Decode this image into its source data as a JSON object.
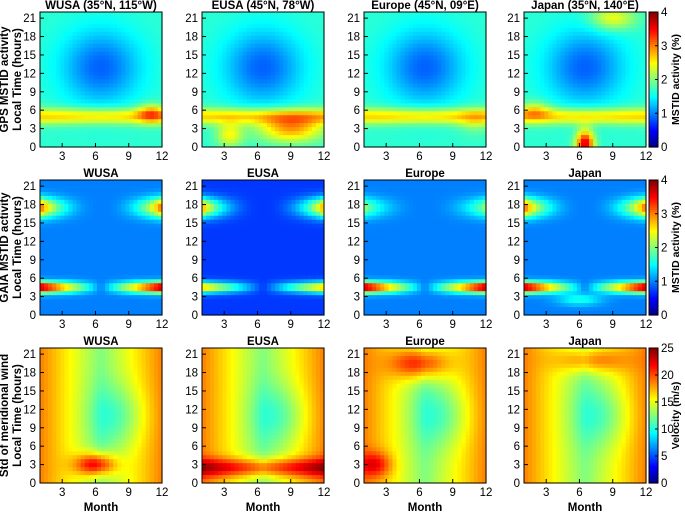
{
  "chart_data": {
    "type": "heatmap",
    "colormap": "jet",
    "x_ticks": [
      3,
      6,
      9,
      12
    ],
    "y_ticks": [
      0,
      3,
      6,
      9,
      12,
      15,
      18,
      21
    ],
    "xlim": [
      1,
      12
    ],
    "ylim": [
      0,
      22
    ],
    "grid": false,
    "x_axis_label": "Month",
    "rows": [
      {
        "row_label_1": "GPS MSTID activity",
        "row_label_2": "Local Time (hours)",
        "colorbar": {
          "label": "MSTID activity (%)",
          "range": [
            0,
            4
          ],
          "ticks": [
            0,
            1,
            2,
            3,
            4
          ]
        },
        "panels": [
          {
            "title": "WUSA (35°N, 115°W)"
          },
          {
            "title": "EUSA (45°N, 78°W)"
          },
          {
            "title": "Europe (45°N, 09°E)"
          },
          {
            "title": "Japan (35°N, 140°E)"
          }
        ]
      },
      {
        "row_label_1": "GAIA MSTID activity",
        "row_label_2": "Local Time (hours)",
        "colorbar": {
          "label": "MSTID activity (%)",
          "range": [
            0,
            4
          ],
          "ticks": [
            0,
            1,
            2,
            3,
            4
          ]
        },
        "panels": [
          {
            "title": "WUSA"
          },
          {
            "title": "EUSA"
          },
          {
            "title": "Europe"
          },
          {
            "title": "Japan"
          }
        ]
      },
      {
        "row_label_1": "Std of meridional wind",
        "row_label_2": "Local Time (hours)",
        "colorbar": {
          "label": "Velocity (m/s)",
          "range": [
            0,
            25
          ],
          "ticks": [
            0,
            5,
            10,
            15,
            20,
            25
          ]
        },
        "panels": [
          {
            "title": "WUSA"
          },
          {
            "title": "EUSA"
          },
          {
            "title": "Europe"
          },
          {
            "title": "Japan"
          }
        ]
      }
    ]
  }
}
